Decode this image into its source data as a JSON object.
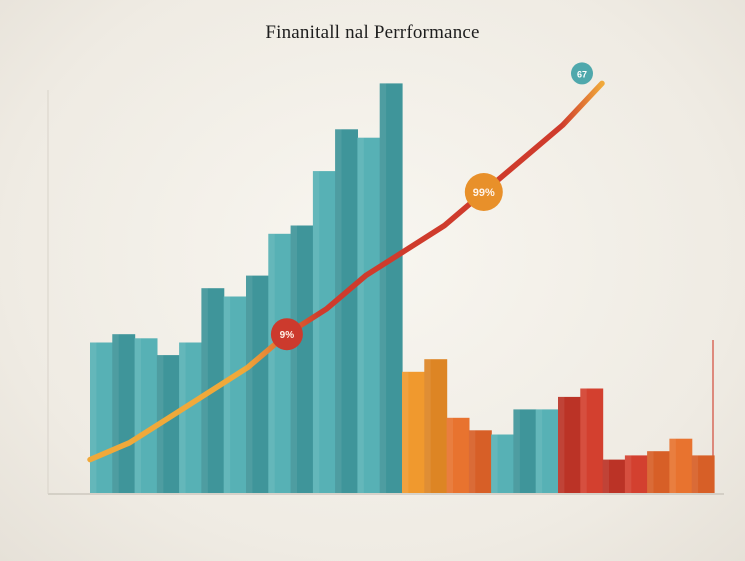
{
  "page": {
    "title": "Finanitall nal Perrformance"
  },
  "chart_data": {
    "type": "bar",
    "title": "Finanitall nal Perrformance",
    "xlabel": "",
    "ylabel": "",
    "ylim": [
      0,
      100
    ],
    "grid": false,
    "legend": "none",
    "colors": {
      "teal": "#4fa8ac",
      "orange": "#e8902a",
      "orange_red": "#e06a2c",
      "red": "#cc3a2d",
      "trend_start": "#f0a93a",
      "trend_end": "#cf3b2c"
    },
    "bars": [
      {
        "value": 36,
        "color": "teal"
      },
      {
        "value": 38,
        "color": "teal"
      },
      {
        "value": 37,
        "color": "teal"
      },
      {
        "value": 33,
        "color": "teal"
      },
      {
        "value": 36,
        "color": "teal"
      },
      {
        "value": 49,
        "color": "teal"
      },
      {
        "value": 47,
        "color": "teal"
      },
      {
        "value": 52,
        "color": "teal"
      },
      {
        "value": 62,
        "color": "teal"
      },
      {
        "value": 64,
        "color": "teal"
      },
      {
        "value": 77,
        "color": "teal"
      },
      {
        "value": 87,
        "color": "teal"
      },
      {
        "value": 85,
        "color": "teal"
      },
      {
        "value": 98,
        "color": "teal"
      },
      {
        "value": 29,
        "color": "orange"
      },
      {
        "value": 32,
        "color": "orange"
      },
      {
        "value": 18,
        "color": "orange_red"
      },
      {
        "value": 15,
        "color": "orange_red"
      },
      {
        "value": 14,
        "color": "teal"
      },
      {
        "value": 20,
        "color": "teal"
      },
      {
        "value": 20,
        "color": "teal"
      },
      {
        "value": 23,
        "color": "red"
      },
      {
        "value": 25,
        "color": "red"
      },
      {
        "value": 8,
        "color": "red"
      },
      {
        "value": 9,
        "color": "red"
      },
      {
        "value": 10,
        "color": "orange_red"
      },
      {
        "value": 13,
        "color": "orange_red"
      },
      {
        "value": 9,
        "color": "orange_red"
      }
    ],
    "trend": [
      8,
      12,
      18,
      24,
      30,
      38,
      44,
      52,
      58,
      64,
      72,
      80,
      88,
      98
    ],
    "markers": [
      {
        "label": "9%",
        "color": "#cc3a2d"
      },
      {
        "label": "99%",
        "color": "#e8902a"
      }
    ],
    "callout": {
      "label": "67",
      "color": "#4fa8ac"
    }
  }
}
